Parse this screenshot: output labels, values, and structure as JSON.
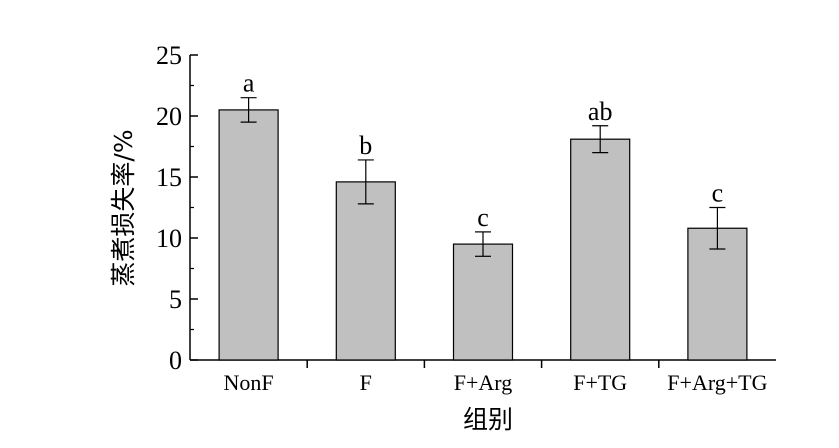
{
  "chart_data": {
    "type": "bar",
    "title": "",
    "xlabel": "组别",
    "ylabel": "蒸煮损失率/%",
    "categories": [
      "NonF",
      "F",
      "F+Arg",
      "F+TG",
      "F+Arg+TG"
    ],
    "values": [
      20.5,
      14.6,
      9.5,
      18.1,
      10.8
    ],
    "errors": [
      1.0,
      1.8,
      1.0,
      1.1,
      1.7
    ],
    "significance_labels": [
      "a",
      "b",
      "c",
      "ab",
      "c"
    ],
    "ylim": [
      0,
      25
    ],
    "yticks": [
      "0",
      "5",
      "10",
      "15",
      "20",
      "25"
    ],
    "bar_color": "#c0c0c0",
    "grid": false,
    "legend": "none"
  }
}
